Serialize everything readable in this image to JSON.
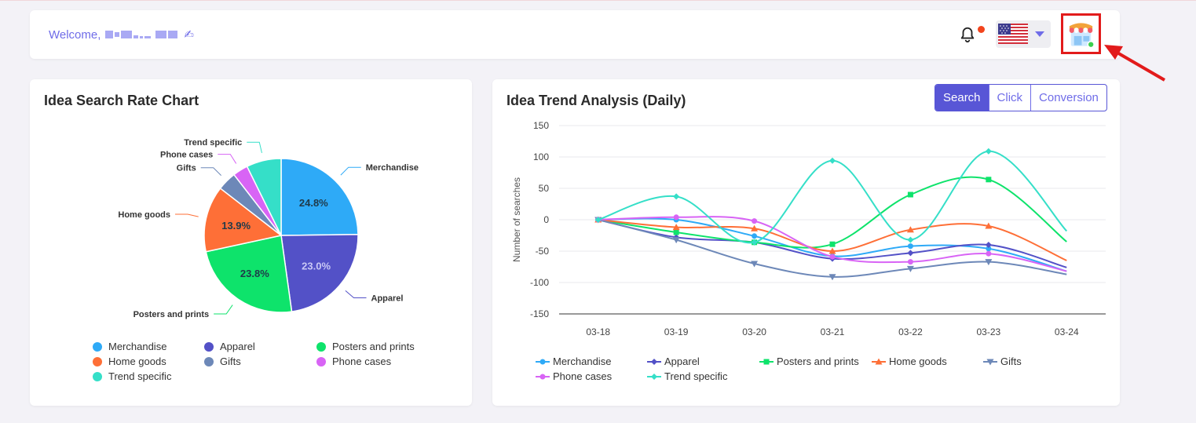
{
  "header": {
    "welcome_label": "Welcome,",
    "icons": {
      "bell": "bell-icon",
      "flag": "us-flag-icon",
      "avatar": "shop-avatar-icon"
    },
    "notification_color": "#f2441d"
  },
  "pie_card": {
    "title": "Idea Search Rate Chart"
  },
  "trend_card": {
    "title": "Idea Trend Analysis (Daily)",
    "tabs": [
      {
        "label": "Search",
        "active": true
      },
      {
        "label": "Click",
        "active": false
      },
      {
        "label": "Conversion",
        "active": false
      }
    ]
  },
  "chart_data": [
    {
      "type": "pie",
      "title": "Idea Search Rate Chart",
      "slices": [
        {
          "name": "Merchandise",
          "value": 24.8,
          "color": "#2eaaf7",
          "label": "24.8%"
        },
        {
          "name": "Apparel",
          "value": 23.0,
          "color": "#5351c7",
          "label": "23.0%"
        },
        {
          "name": "Posters and prints",
          "value": 23.8,
          "color": "#0ee36b",
          "label": "23.8%"
        },
        {
          "name": "Home goods",
          "value": 13.9,
          "color": "#fe6f37",
          "label": "13.9%"
        },
        {
          "name": "Gifts",
          "value": 4.0,
          "color": "#6d88b8",
          "label": ""
        },
        {
          "name": "Phone cases",
          "value": 3.2,
          "color": "#d864f5",
          "label": ""
        },
        {
          "name": "Trend specific",
          "value": 7.3,
          "color": "#35dfc8",
          "label": ""
        }
      ],
      "legend": [
        "Merchandise",
        "Apparel",
        "Posters and prints",
        "Home goods",
        "Gifts",
        "Phone cases",
        "Trend specific"
      ]
    },
    {
      "type": "line",
      "title": "Idea Trend Analysis (Daily)",
      "ylabel": "Number of searches",
      "ylim": [
        -150,
        150
      ],
      "yticks": [
        150,
        100,
        50,
        0,
        -50,
        -100,
        -150
      ],
      "categories": [
        "03-18",
        "03-19",
        "03-20",
        "03-21",
        "03-22",
        "03-23",
        "03-24"
      ],
      "series": [
        {
          "name": "Merchandise",
          "color": "#2eaaf7",
          "marker": "circle",
          "values": [
            0,
            0,
            -26,
            -58,
            -42,
            -46,
            -82
          ]
        },
        {
          "name": "Apparel",
          "color": "#5351c7",
          "marker": "diamond",
          "values": [
            0,
            -28,
            -36,
            -62,
            -53,
            -40,
            -76
          ]
        },
        {
          "name": "Posters and prints",
          "color": "#0ee36b",
          "marker": "square",
          "values": [
            0,
            -20,
            -36,
            -39,
            40,
            64,
            -35
          ]
        },
        {
          "name": "Home goods",
          "color": "#fe6f37",
          "marker": "triangle",
          "values": [
            0,
            -12,
            -14,
            -50,
            -16,
            -10,
            -65
          ]
        },
        {
          "name": "Gifts",
          "color": "#6d88b8",
          "marker": "triangle-down",
          "values": [
            0,
            -32,
            -70,
            -91,
            -78,
            -67,
            -87
          ]
        },
        {
          "name": "Phone cases",
          "color": "#d864f5",
          "marker": "circle",
          "values": [
            0,
            4,
            -2,
            -59,
            -67,
            -54,
            -82
          ]
        },
        {
          "name": "Trend specific",
          "color": "#35dfc8",
          "marker": "diamond",
          "values": [
            0,
            37,
            -36,
            94,
            -32,
            109,
            -18
          ]
        }
      ]
    }
  ]
}
